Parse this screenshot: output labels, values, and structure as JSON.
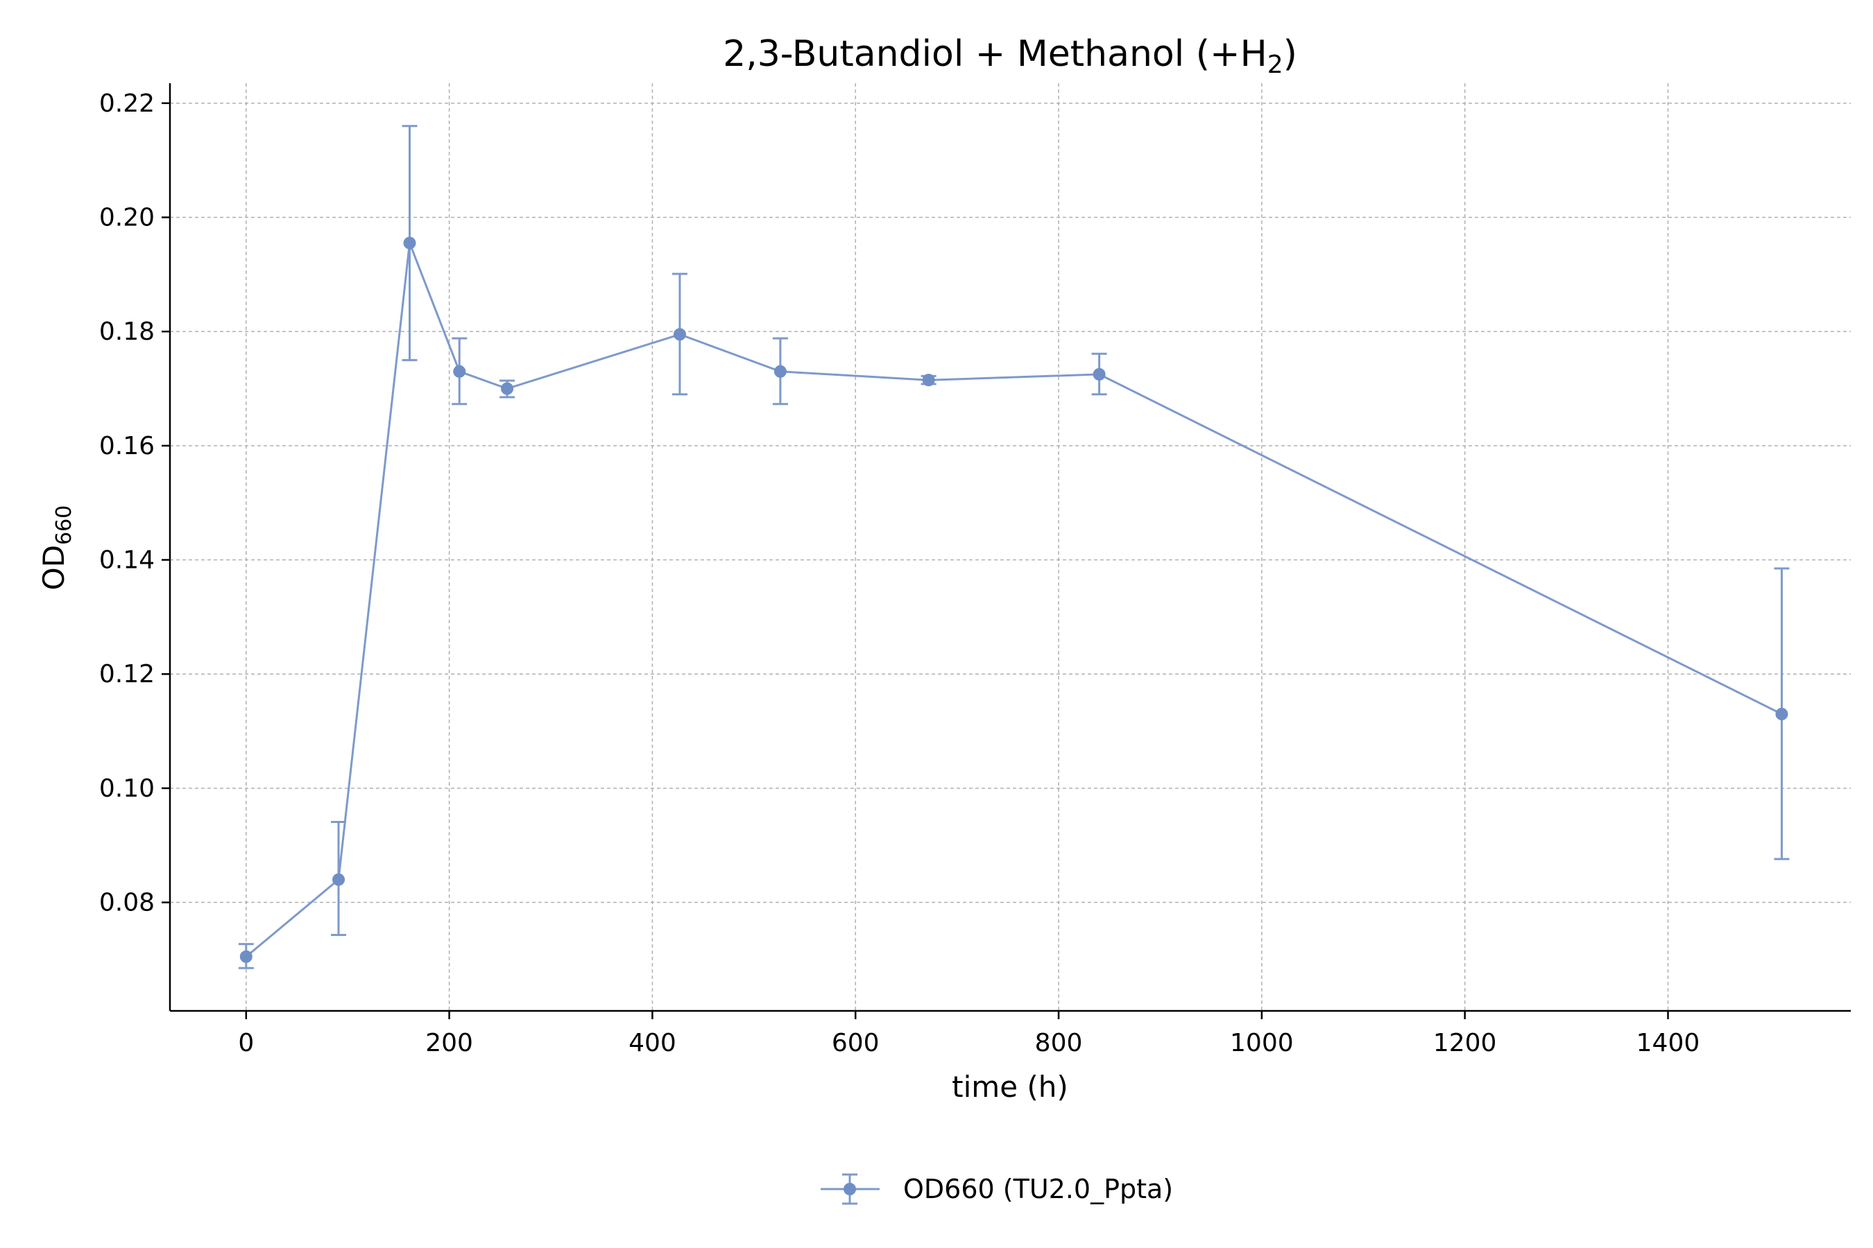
{
  "chart_data": {
    "type": "line",
    "title": "2,3-Butandiol + Methanol (+H",
    "title_sub": "2",
    "title_end": ")",
    "xlabel": "time (h)",
    "ylabel_main": "OD",
    "ylabel_sub": "660",
    "xlim": [
      -75,
      1580
    ],
    "ylim": [
      0.061,
      0.2235
    ],
    "xticks": [
      0,
      200,
      400,
      600,
      800,
      1000,
      1200,
      1400
    ],
    "xtick_labels": [
      "0",
      "200",
      "400",
      "600",
      "800",
      "1000",
      "1200",
      "1400"
    ],
    "yticks": [
      0.08,
      0.1,
      0.12,
      0.14,
      0.16,
      0.18,
      0.2,
      0.22
    ],
    "ytick_labels": [
      "0.08",
      "0.10",
      "0.12",
      "0.14",
      "0.16",
      "0.18",
      "0.20",
      "0.22"
    ],
    "grid": true,
    "legend_position": "bottom-center",
    "series": [
      {
        "name": "OD660 (TU2.0_Ppta)",
        "color": "#7d9acb",
        "points": [
          {
            "x": 0,
            "y": 0.0705,
            "err_low": 0.0685,
            "err_high": 0.0727
          },
          {
            "x": 91,
            "y": 0.084,
            "err_low": 0.0743,
            "err_high": 0.0941
          },
          {
            "x": 161,
            "y": 0.1955,
            "err_low": 0.175,
            "err_high": 0.216
          },
          {
            "x": 210,
            "y": 0.173,
            "err_low": 0.1673,
            "err_high": 0.1788
          },
          {
            "x": 257,
            "y": 0.17,
            "err_low": 0.1685,
            "err_high": 0.1714
          },
          {
            "x": 427,
            "y": 0.1795,
            "err_low": 0.169,
            "err_high": 0.1901
          },
          {
            "x": 526,
            "y": 0.173,
            "err_low": 0.1673,
            "err_high": 0.1788
          },
          {
            "x": 672,
            "y": 0.1715,
            "err_low": 0.1708,
            "err_high": 0.1722
          },
          {
            "x": 840,
            "y": 0.1725,
            "err_low": 0.169,
            "err_high": 0.1761
          },
          {
            "x": 1512,
            "y": 0.113,
            "err_low": 0.0876,
            "err_high": 0.1385
          }
        ]
      }
    ]
  }
}
